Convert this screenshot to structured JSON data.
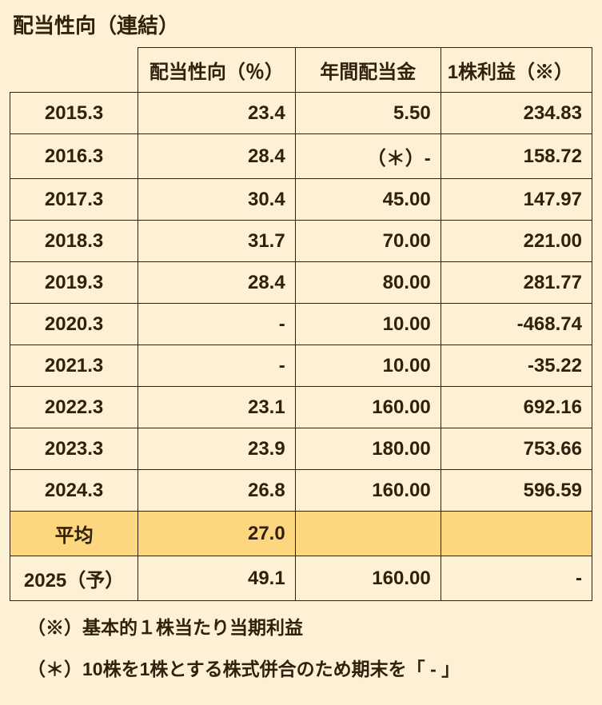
{
  "title": "配当性向（連結）",
  "columns": {
    "ratio": "配当性向（％）",
    "dividend": "年間配当金",
    "eps": "1株利益（※）"
  },
  "rows": [
    {
      "period": "2015.3",
      "ratio": "23.4",
      "dividend": "5.50",
      "eps": "234.83"
    },
    {
      "period": "2016.3",
      "ratio": "28.4",
      "dividend": "（＊）-",
      "eps": "158.72"
    },
    {
      "period": "2017.3",
      "ratio": "30.4",
      "dividend": "45.00",
      "eps": "147.97"
    },
    {
      "period": "2018.3",
      "ratio": "31.7",
      "dividend": "70.00",
      "eps": "221.00"
    },
    {
      "period": "2019.3",
      "ratio": "28.4",
      "dividend": "80.00",
      "eps": "281.77"
    },
    {
      "period": "2020.3",
      "ratio": "-",
      "dividend": "10.00",
      "eps": "-468.74"
    },
    {
      "period": "2021.3",
      "ratio": "-",
      "dividend": "10.00",
      "eps": "-35.22"
    },
    {
      "period": "2022.3",
      "ratio": "23.1",
      "dividend": "160.00",
      "eps": "692.16"
    },
    {
      "period": "2023.3",
      "ratio": "23.9",
      "dividend": "180.00",
      "eps": "753.66"
    },
    {
      "period": "2024.3",
      "ratio": "26.8",
      "dividend": "160.00",
      "eps": "596.59"
    }
  ],
  "average": {
    "label": "平均",
    "ratio": "27.0",
    "dividend": "",
    "eps": ""
  },
  "forecast": {
    "period": "2025（予）",
    "ratio": "49.1",
    "dividend": "160.00",
    "eps": "-"
  },
  "notes": {
    "note1": "（※）基本的１株当たり当期利益",
    "note2": "（＊）10株を1株とする株式併合のため期末を「 - 」"
  },
  "style": {
    "background_color": "#fdf1d5",
    "highlight_color": "#fcd77f",
    "border_color": "#31200d",
    "text_color": "#31200d",
    "title_fontsize": 26,
    "cell_fontsize": 24,
    "note_fontsize": 23
  }
}
